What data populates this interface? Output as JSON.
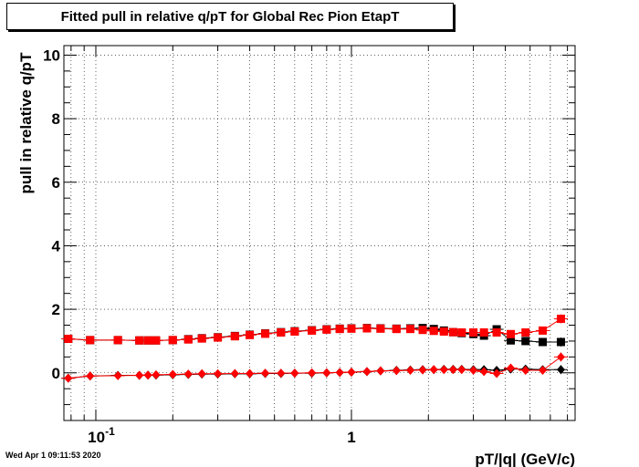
{
  "footer": {
    "timestamp": "Wed Apr  1 09:11:53 2020"
  },
  "chart_data": {
    "type": "scatter",
    "title": "Fitted pull in relative q/pT for Global Rec Pion EtapT",
    "xlabel": "pT/|q| (GeV/c)",
    "ylabel": "pull in relative q/pT",
    "x_scale": "log",
    "xlim": [
      0.075,
      7.5
    ],
    "ylim": [
      -1.5,
      10.3
    ],
    "x_major_ticks": [
      0.1,
      1
    ],
    "x_tick_labels": [
      "10^-1",
      "1"
    ],
    "y_ticks": [
      0,
      2,
      4,
      6,
      8,
      10
    ],
    "y_tick_labels": [
      "0",
      "2",
      "4",
      "6",
      "8",
      "10"
    ],
    "grid": true,
    "series": [
      {
        "marker": "square",
        "color": "#000000",
        "x": [
          0.078,
          0.095,
          0.122,
          0.148,
          0.16,
          0.172,
          0.2,
          0.23,
          0.26,
          0.3,
          0.35,
          0.4,
          0.46,
          0.53,
          0.6,
          0.7,
          0.8,
          0.9,
          1.0,
          1.15,
          1.3,
          1.5,
          1.7,
          1.9,
          2.1,
          2.3,
          2.5,
          2.7,
          3.0,
          3.3,
          3.7,
          4.2,
          4.8,
          5.6,
          6.6
        ],
        "y": [
          1.07,
          1.03,
          1.03,
          1.02,
          1.02,
          1.02,
          1.03,
          1.06,
          1.09,
          1.12,
          1.16,
          1.2,
          1.24,
          1.28,
          1.31,
          1.34,
          1.37,
          1.39,
          1.4,
          1.41,
          1.4,
          1.39,
          1.4,
          1.41,
          1.38,
          1.33,
          1.28,
          1.25,
          1.22,
          1.17,
          1.37,
          1.02,
          1.0,
          0.97,
          0.97
        ],
        "yerr": [
          0.04,
          0.03,
          0.03,
          0.03,
          0.03,
          0.03,
          0.03,
          0.03,
          0.03,
          0.03,
          0.03,
          0.03,
          0.03,
          0.03,
          0.03,
          0.03,
          0.03,
          0.03,
          0.03,
          0.03,
          0.03,
          0.03,
          0.04,
          0.04,
          0.04,
          0.05,
          0.05,
          0.06,
          0.06,
          0.07,
          0.08,
          0.09,
          0.1,
          0.12,
          0.14
        ]
      },
      {
        "marker": "square",
        "color": "#ff0000",
        "x": [
          0.078,
          0.095,
          0.122,
          0.148,
          0.16,
          0.172,
          0.2,
          0.23,
          0.26,
          0.3,
          0.35,
          0.4,
          0.46,
          0.53,
          0.6,
          0.7,
          0.8,
          0.9,
          1.0,
          1.15,
          1.3,
          1.5,
          1.7,
          1.9,
          2.1,
          2.3,
          2.5,
          2.7,
          3.0,
          3.3,
          3.7,
          4.2,
          4.8,
          5.6,
          6.6
        ],
        "y": [
          1.07,
          1.03,
          1.03,
          1.02,
          1.02,
          1.02,
          1.03,
          1.05,
          1.08,
          1.11,
          1.15,
          1.19,
          1.23,
          1.27,
          1.3,
          1.33,
          1.36,
          1.38,
          1.39,
          1.4,
          1.39,
          1.38,
          1.38,
          1.35,
          1.32,
          1.3,
          1.28,
          1.27,
          1.27,
          1.27,
          1.27,
          1.22,
          1.27,
          1.33,
          1.7
        ],
        "yerr": [
          0.04,
          0.03,
          0.03,
          0.03,
          0.03,
          0.03,
          0.03,
          0.03,
          0.03,
          0.03,
          0.03,
          0.03,
          0.03,
          0.03,
          0.03,
          0.03,
          0.03,
          0.03,
          0.03,
          0.03,
          0.03,
          0.03,
          0.04,
          0.04,
          0.04,
          0.05,
          0.05,
          0.06,
          0.06,
          0.07,
          0.08,
          0.09,
          0.1,
          0.12,
          0.14
        ]
      },
      {
        "marker": "diamond",
        "color": "#000000",
        "x": [
          0.078,
          0.095,
          0.122,
          0.148,
          0.16,
          0.172,
          0.2,
          0.23,
          0.26,
          0.3,
          0.35,
          0.4,
          0.46,
          0.53,
          0.6,
          0.7,
          0.8,
          0.9,
          1.0,
          1.15,
          1.3,
          1.5,
          1.7,
          1.9,
          2.1,
          2.3,
          2.5,
          2.7,
          3.0,
          3.3,
          3.7,
          4.2,
          4.8,
          5.6,
          6.6
        ],
        "y": [
          -0.17,
          -0.1,
          -0.08,
          -0.08,
          -0.07,
          -0.07,
          -0.06,
          -0.05,
          -0.04,
          -0.04,
          -0.03,
          -0.03,
          -0.02,
          -0.02,
          -0.01,
          -0.01,
          0.0,
          0.01,
          0.02,
          0.04,
          0.06,
          0.08,
          0.09,
          0.1,
          0.1,
          0.11,
          0.11,
          0.11,
          0.1,
          0.1,
          0.08,
          0.12,
          0.12,
          0.1,
          0.1
        ],
        "yerr": [
          0.04,
          0.03,
          0.03,
          0.03,
          0.03,
          0.03,
          0.03,
          0.03,
          0.03,
          0.03,
          0.03,
          0.03,
          0.03,
          0.03,
          0.03,
          0.03,
          0.03,
          0.03,
          0.03,
          0.03,
          0.03,
          0.03,
          0.04,
          0.04,
          0.04,
          0.05,
          0.05,
          0.06,
          0.06,
          0.07,
          0.08,
          0.09,
          0.1,
          0.12,
          0.14
        ]
      },
      {
        "marker": "diamond",
        "color": "#ff0000",
        "x": [
          0.078,
          0.095,
          0.122,
          0.148,
          0.16,
          0.172,
          0.2,
          0.23,
          0.26,
          0.3,
          0.35,
          0.4,
          0.46,
          0.53,
          0.6,
          0.7,
          0.8,
          0.9,
          1.0,
          1.15,
          1.3,
          1.5,
          1.7,
          1.9,
          2.1,
          2.3,
          2.5,
          2.7,
          3.0,
          3.3,
          3.7,
          4.2,
          4.8,
          5.6,
          6.6
        ],
        "y": [
          -0.17,
          -0.1,
          -0.09,
          -0.08,
          -0.07,
          -0.06,
          -0.05,
          -0.04,
          -0.03,
          -0.03,
          -0.02,
          -0.02,
          -0.01,
          -0.01,
          -0.01,
          0.0,
          0.0,
          0.01,
          0.02,
          0.04,
          0.06,
          0.07,
          0.08,
          0.09,
          0.1,
          0.1,
          0.1,
          0.1,
          0.08,
          0.04,
          -0.02,
          0.15,
          0.08,
          0.08,
          0.5
        ],
        "yerr": [
          0.04,
          0.03,
          0.03,
          0.03,
          0.03,
          0.03,
          0.03,
          0.03,
          0.03,
          0.03,
          0.03,
          0.03,
          0.03,
          0.03,
          0.03,
          0.03,
          0.03,
          0.03,
          0.03,
          0.03,
          0.03,
          0.03,
          0.04,
          0.04,
          0.04,
          0.05,
          0.05,
          0.06,
          0.06,
          0.07,
          0.08,
          0.09,
          0.1,
          0.12,
          0.14
        ]
      }
    ]
  }
}
